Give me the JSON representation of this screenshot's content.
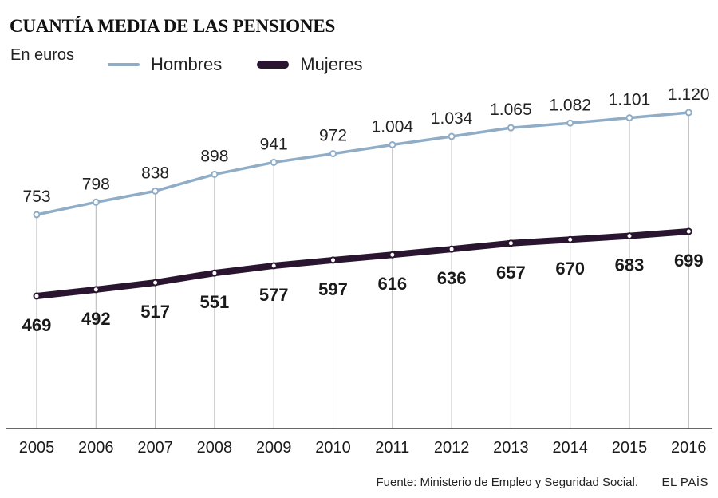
{
  "title": "CUANTÍA MEDIA DE LAS PENSIONES",
  "subtitle": "En euros",
  "source": "Fuente: Ministerio de Empleo y Seguridad Social.",
  "brand": "EL PAÍS",
  "colors": {
    "hombres": "#8fadc6",
    "mujeres": "#2a1530",
    "grid": "#b5b5b5",
    "axis": "#333333"
  },
  "chart_data": {
    "type": "line",
    "title": "CUANTÍA MEDIA DE LAS PENSIONES",
    "ylabel": "En euros",
    "xlabel": "",
    "grid": true,
    "legend_position": "top",
    "categories": [
      "2005",
      "2006",
      "2007",
      "2008",
      "2009",
      "2010",
      "2011",
      "2012",
      "2013",
      "2014",
      "2015",
      "2016"
    ],
    "series": [
      {
        "name": "Hombres",
        "values": [
          753,
          798,
          838,
          898,
          941,
          972,
          1004,
          1034,
          1065,
          1082,
          1101,
          1120
        ],
        "labels": [
          "753",
          "798",
          "838",
          "898",
          "941",
          "972",
          "1.004",
          "1.034",
          "1.065",
          "1.082",
          "1.101",
          "1.120"
        ]
      },
      {
        "name": "Mujeres",
        "values": [
          469,
          492,
          517,
          551,
          577,
          597,
          616,
          636,
          657,
          670,
          683,
          699
        ],
        "labels": [
          "469",
          "492",
          "517",
          "551",
          "577",
          "597",
          "616",
          "636",
          "657",
          "670",
          "683",
          "699"
        ]
      }
    ]
  }
}
